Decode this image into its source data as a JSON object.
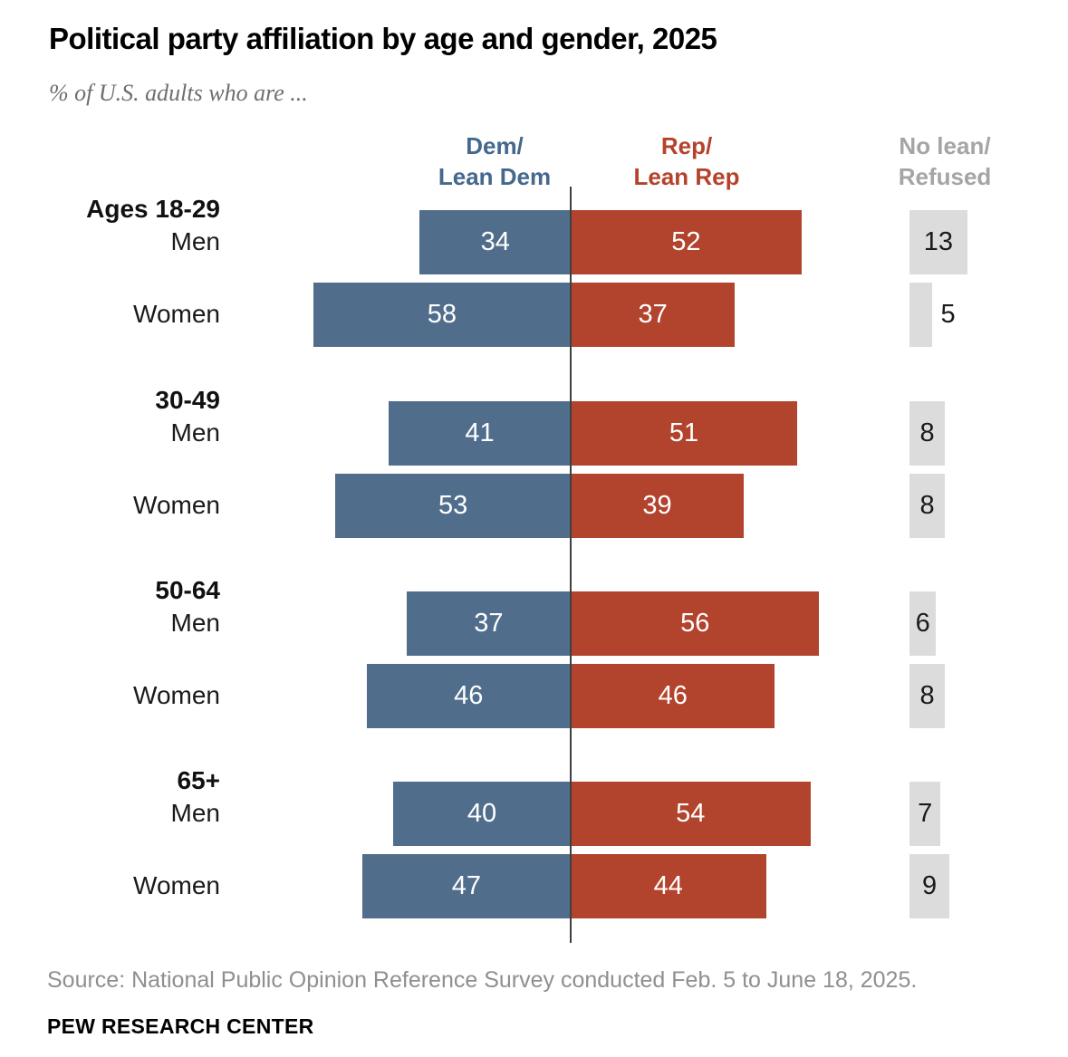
{
  "header": {
    "title": "Political party affiliation by age and gender, 2025",
    "subtitle": "% of U.S. adults who are ..."
  },
  "chart_data": {
    "type": "bar",
    "variant": "diverging-horizontal-grouped",
    "unit": "% of U.S. adults",
    "column_headers": [
      {
        "id": "dem",
        "label": "Dem/\nLean Dem",
        "color": "#44688E"
      },
      {
        "id": "rep",
        "label": "Rep/\nLean Rep",
        "color": "#B5432C"
      },
      {
        "id": "nolean",
        "label": "No lean/\nRefused",
        "color": "#A5A5A5"
      }
    ],
    "colors": {
      "dem": "#506E8C",
      "rep": "#B2432D",
      "nolean_box": "#DCDCDC",
      "bar_value_text": "#FFFFFF",
      "nolean_value_text": "#1A1A1A"
    },
    "groups": [
      {
        "label": "Ages 18-29",
        "rows": [
          {
            "label": "Men",
            "dem": 34,
            "rep": 52,
            "nolean": 13
          },
          {
            "label": "Women",
            "dem": 58,
            "rep": 37,
            "nolean": 5
          }
        ]
      },
      {
        "label": "30-49",
        "rows": [
          {
            "label": "Men",
            "dem": 41,
            "rep": 51,
            "nolean": 8
          },
          {
            "label": "Women",
            "dem": 53,
            "rep": 39,
            "nolean": 8
          }
        ]
      },
      {
        "label": "50-64",
        "rows": [
          {
            "label": "Men",
            "dem": 37,
            "rep": 56,
            "nolean": 6
          },
          {
            "label": "Women",
            "dem": 46,
            "rep": 46,
            "nolean": 8
          }
        ]
      },
      {
        "label": "65+",
        "rows": [
          {
            "label": "Men",
            "dem": 40,
            "rep": 54,
            "nolean": 7
          },
          {
            "label": "Women",
            "dem": 47,
            "rep": 44,
            "nolean": 9
          }
        ]
      }
    ]
  },
  "footer": {
    "source": "Source: National Public Opinion Reference Survey conducted Feb. 5 to June 18, 2025.",
    "brand": "PEW RESEARCH CENTER"
  }
}
